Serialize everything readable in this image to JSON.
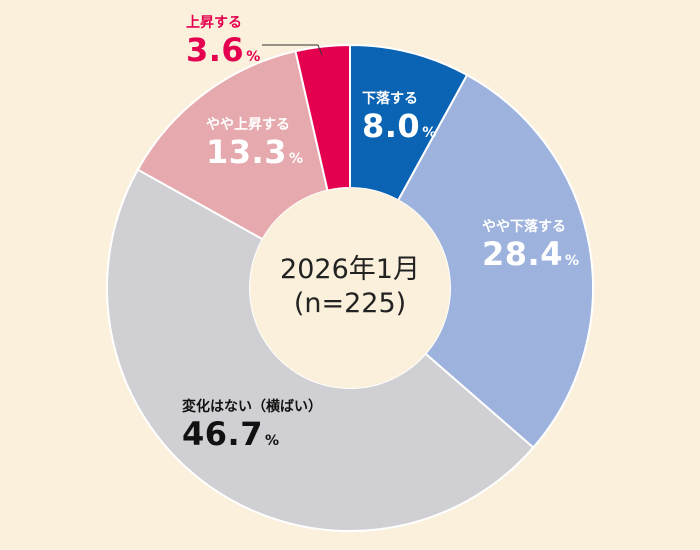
{
  "colors": {
    "background": "#FAF0DC",
    "leader_line": "#333333"
  },
  "chart_data": {
    "type": "pie",
    "donut": true,
    "center_label": {
      "line1": "2026年1月",
      "line2": "(n=225)"
    },
    "unit": "%",
    "slices": [
      {
        "label": "下落する",
        "value": 8.0,
        "display": "8.0",
        "color": "#0B63B3",
        "text_color": "#FFFFFF"
      },
      {
        "label": "やや下落する",
        "value": 28.4,
        "display": "28.4",
        "color": "#9DB2DC",
        "text_color": "#FFFFFF"
      },
      {
        "label": "変化はない（横ばい）",
        "value": 46.7,
        "display": "46.7",
        "color": "#D0CFD3",
        "text_color": "#111111"
      },
      {
        "label": "やや上昇する",
        "value": 13.3,
        "display": "13.3",
        "color": "#E6A9AE",
        "text_color": "#FFFFFF"
      },
      {
        "label": "上昇する",
        "value": 3.6,
        "display": "3.6",
        "color": "#E4004F",
        "text_color": "#E4004F"
      }
    ]
  }
}
